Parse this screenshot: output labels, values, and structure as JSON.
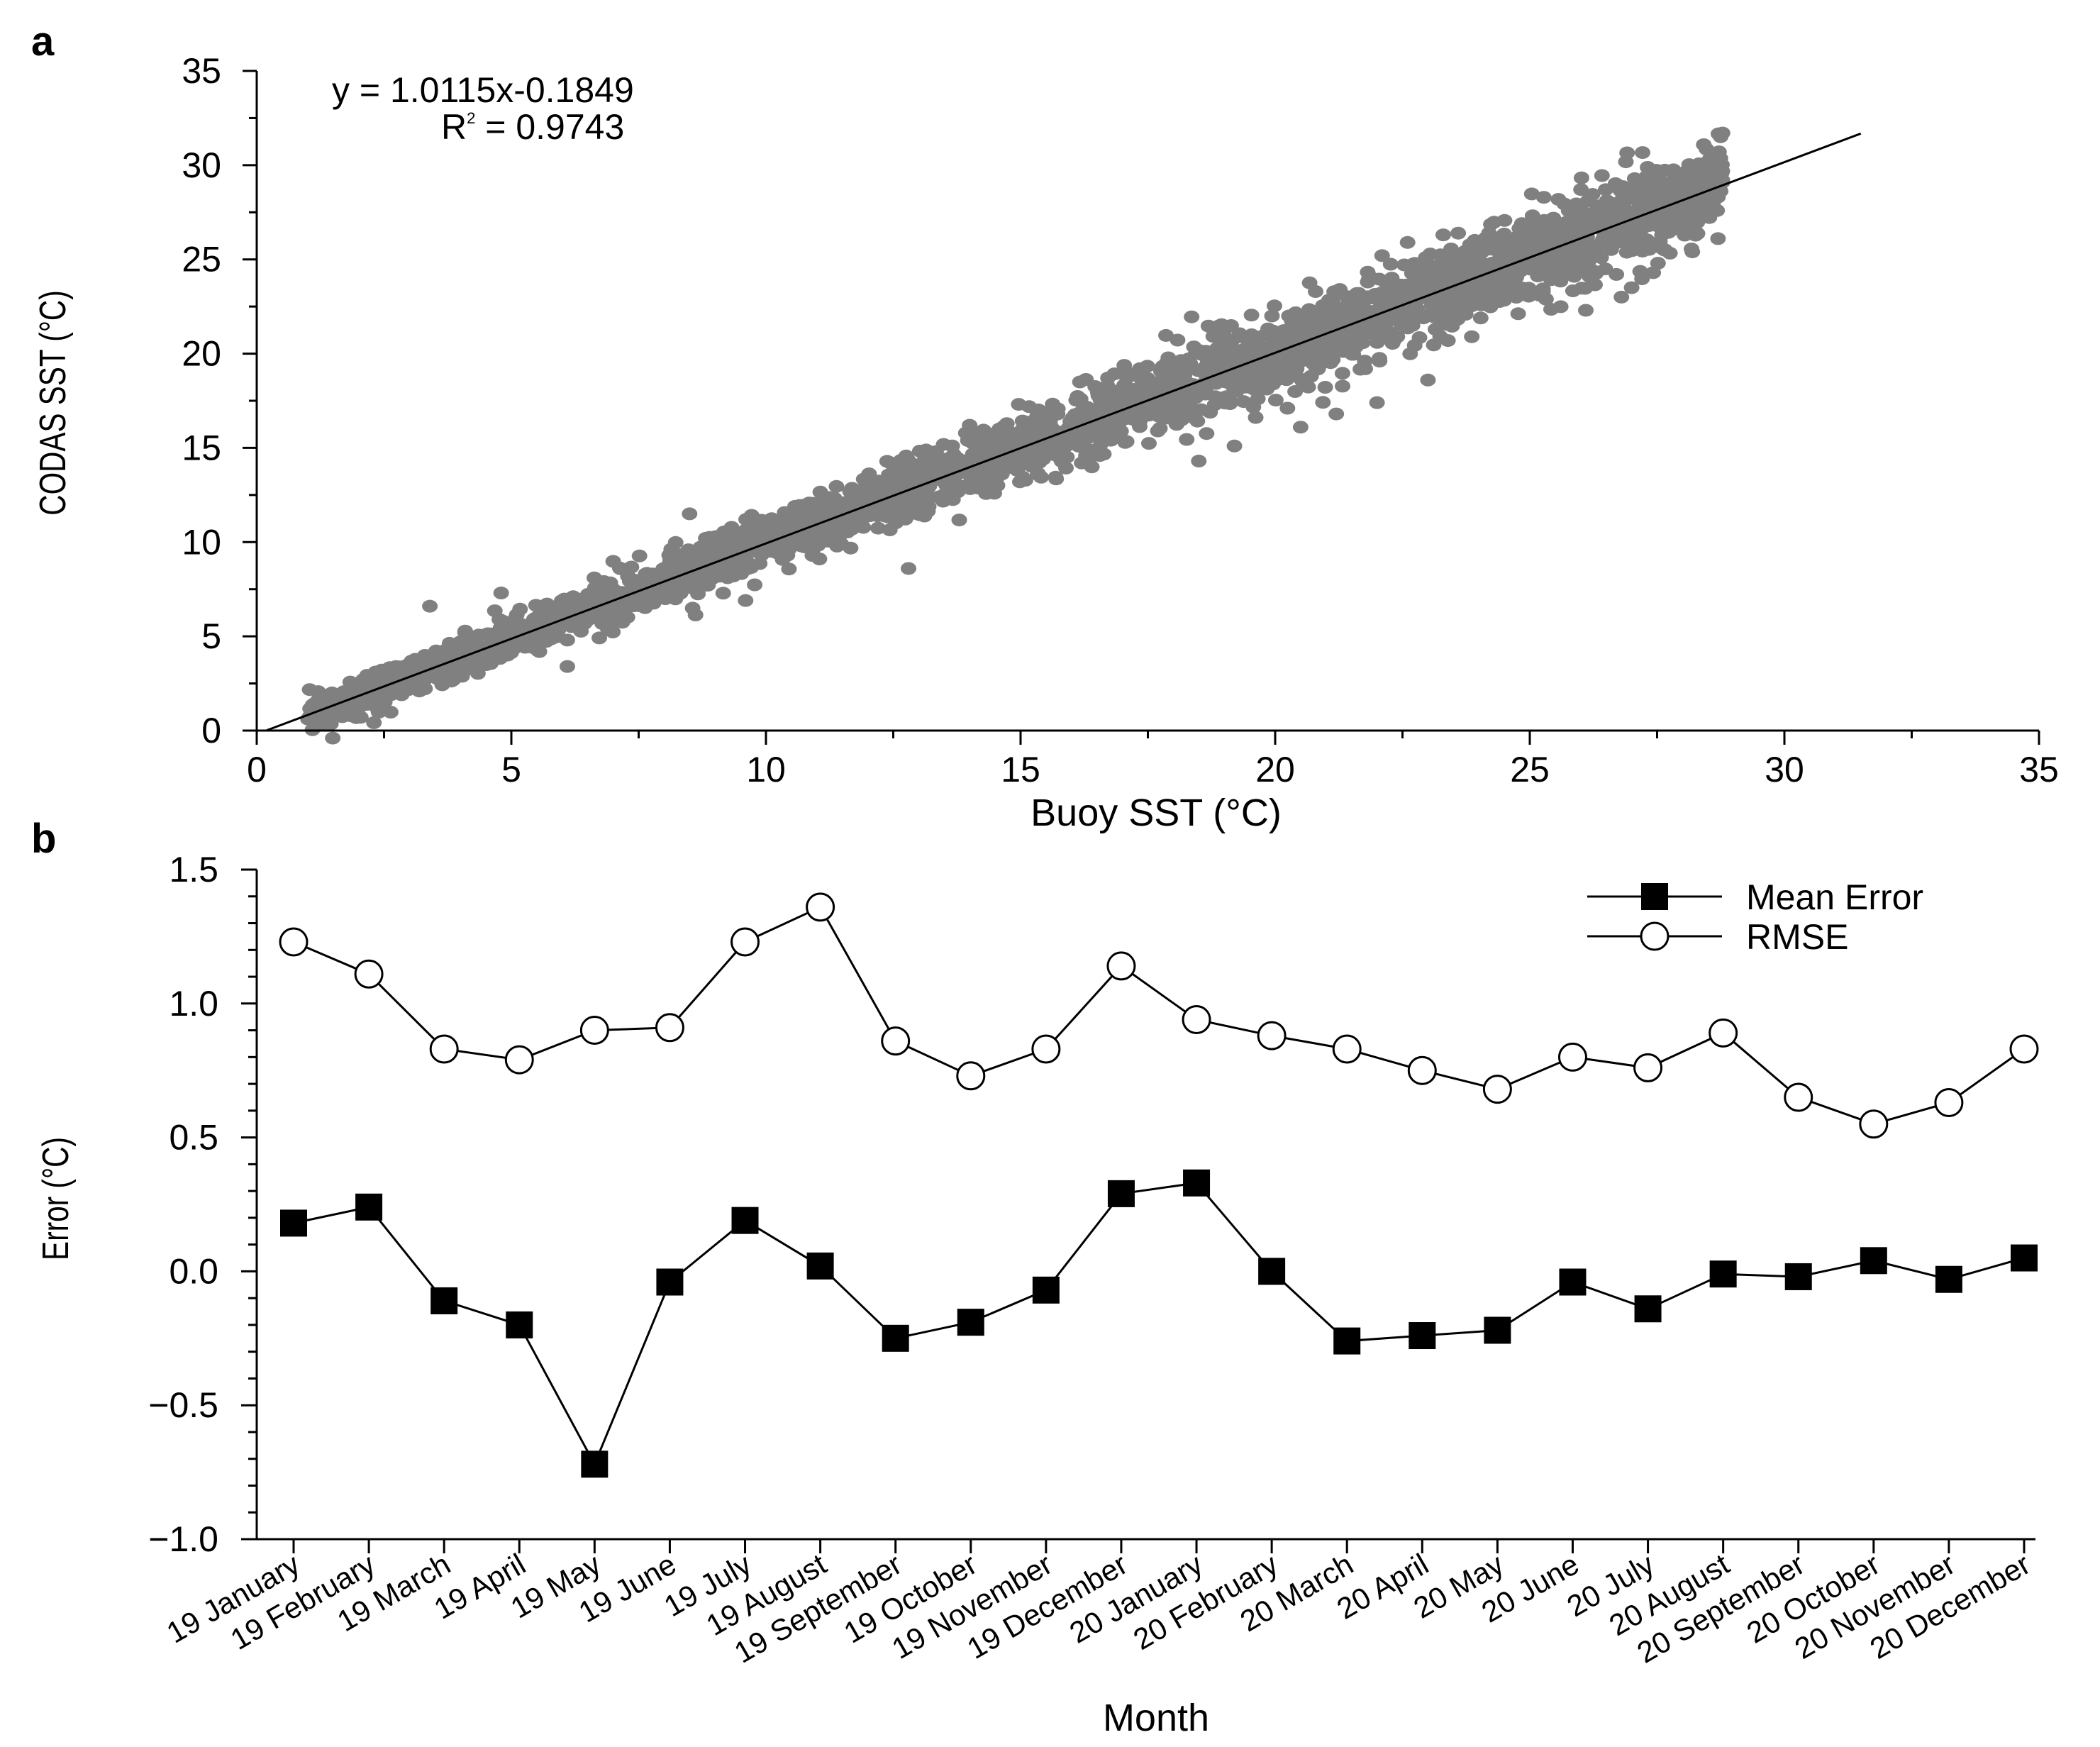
{
  "chart_data": [
    {
      "panel": "a",
      "type": "scatter",
      "xlabel": "Buoy SST (°C)",
      "ylabel": "CODAS SST (°C)",
      "xlim": [
        0,
        35
      ],
      "ylim": [
        0,
        35
      ],
      "xticks": [
        "0",
        "5",
        "10",
        "15",
        "20",
        "25",
        "30",
        "35"
      ],
      "yticks": [
        "0",
        "5",
        "10",
        "15",
        "20",
        "25",
        "30",
        "35"
      ],
      "annotation": {
        "equation": "y = 1.0115x-0.1849",
        "r2_prefix": "R",
        "r2_sup": "2",
        "r2_value": " = 0.9743"
      },
      "fit": {
        "slope": 1.0115,
        "intercept": -0.1849,
        "x_range": [
          0.2,
          31.5
        ]
      },
      "point_cloud": {
        "x_range": [
          1.0,
          28.8
        ],
        "color": "#808080",
        "n_points": 3000
      },
      "outliers": [
        {
          "x": 22.1,
          "y": 25.2
        },
        {
          "x": 22.6,
          "y": 25.9
        },
        {
          "x": 23.3,
          "y": 26.3
        },
        {
          "x": 24.2,
          "y": 26.4
        },
        {
          "x": 24.8,
          "y": 26.2
        },
        {
          "x": 18.5,
          "y": 14.3
        },
        {
          "x": 19.2,
          "y": 15.1
        },
        {
          "x": 20.5,
          "y": 16.1
        },
        {
          "x": 21.2,
          "y": 16.8
        },
        {
          "x": 22.0,
          "y": 17.4
        },
        {
          "x": 26.1,
          "y": 22.3
        },
        {
          "x": 26.8,
          "y": 23.0
        },
        {
          "x": 27.0,
          "y": 23.5
        },
        {
          "x": 23.0,
          "y": 18.6
        },
        {
          "x": 16.2,
          "y": 14.2
        },
        {
          "x": 12.8,
          "y": 8.6
        },
        {
          "x": 9.6,
          "y": 6.9
        },
        {
          "x": 3.4,
          "y": 6.6
        },
        {
          "x": 4.8,
          "y": 7.3
        },
        {
          "x": 8.5,
          "y": 11.5
        },
        {
          "x": 14.0,
          "y": 16.2
        },
        {
          "x": 6.1,
          "y": 3.4
        }
      ],
      "marker_color": "#808080"
    },
    {
      "panel": "b",
      "type": "line",
      "xlabel": "Month",
      "ylabel": "Error (°C)",
      "ylim": [
        -1.0,
        1.5
      ],
      "yticks": [
        "1.5",
        "1.0",
        "0.5",
        "0.0",
        "−0.5",
        "−1.0"
      ],
      "categories": [
        "19 January",
        "19 February",
        "19 March",
        "19 April",
        "19 May",
        "19 June",
        "19 July",
        "19 August",
        "19 September",
        "19 October",
        "19 November",
        "19 December",
        "20 January",
        "20 February",
        "20 March",
        "20 April",
        "20 May",
        "20 June",
        "20 July",
        "20 August",
        "20 September",
        "20 October",
        "20 November",
        "20 December"
      ],
      "series": [
        {
          "name": "Mean Error",
          "marker": "filled-square",
          "values": [
            0.18,
            0.24,
            -0.11,
            -0.2,
            -0.72,
            -0.04,
            0.19,
            0.02,
            -0.25,
            -0.19,
            -0.07,
            0.29,
            0.33,
            0.0,
            -0.26,
            -0.24,
            -0.22,
            -0.04,
            -0.14,
            -0.01,
            -0.02,
            0.04,
            -0.03,
            0.05
          ]
        },
        {
          "name": "RMSE",
          "marker": "open-circle",
          "values": [
            1.23,
            1.11,
            0.83,
            0.79,
            0.9,
            0.91,
            1.23,
            1.36,
            0.86,
            0.73,
            0.83,
            1.14,
            0.94,
            0.88,
            0.83,
            0.75,
            0.68,
            0.8,
            0.76,
            0.89,
            0.65,
            0.55,
            0.63,
            0.83
          ]
        }
      ],
      "legend": {
        "position": "top-right",
        "entries": [
          "Mean Error",
          "RMSE"
        ]
      }
    }
  ]
}
